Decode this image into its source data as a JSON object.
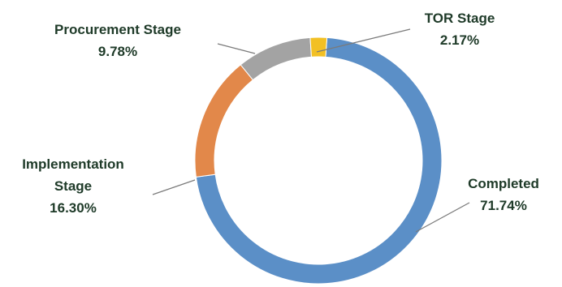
{
  "chart_data": {
    "type": "pie",
    "style": "donut",
    "slices": [
      {
        "label": "Completed",
        "value": 71.74,
        "value_label": "71.74%",
        "color": "#5b8fc7"
      },
      {
        "label": "Implementation Stage",
        "value": 16.3,
        "value_label": "16.30%",
        "color": "#e2884a"
      },
      {
        "label": "Procurement Stage",
        "value": 9.78,
        "value_label": "9.78%",
        "color": "#a3a3a3"
      },
      {
        "label": "TOR Stage",
        "value": 2.17,
        "value_label": "2.17%",
        "color": "#f2c024"
      }
    ],
    "start_angle_deg": 4,
    "direction": "clockwise",
    "legend": "none"
  }
}
